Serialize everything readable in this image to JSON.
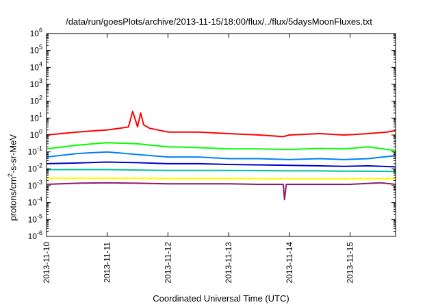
{
  "chart_data": {
    "type": "line",
    "title": "/data/run/goesPlots/archive/2013-11-15/18:00/flux/../flux/5daysMoonFluxes.txt",
    "xlabel": "Coordinated Universal Time (UTC)",
    "ylabel": {
      "prefix": "protons/cm",
      "sup": "2",
      "suffix": "-s-sr-MeV"
    },
    "y_scale": "log",
    "ylim": [
      1e-06,
      1000000.0
    ],
    "xlim": [
      "2013-11-10",
      "2013-11-15 18:00"
    ],
    "x_ticks": [
      "2013-11-10",
      "2013-11-11",
      "2013-11-12",
      "2013-11-13",
      "2013-11-14",
      "2013-11-15"
    ],
    "y_ticks": [
      {
        "base": "10",
        "exp": "6"
      },
      {
        "base": "10",
        "exp": "5"
      },
      {
        "base": "10",
        "exp": "4"
      },
      {
        "base": "10",
        "exp": "3"
      },
      {
        "base": "10",
        "exp": "2"
      },
      {
        "base": "10",
        "exp": "1"
      },
      {
        "base": "10",
        "exp": "0"
      },
      {
        "base": "10",
        "exp": "-1"
      },
      {
        "base": "10",
        "exp": "-2"
      },
      {
        "base": "10",
        "exp": "-3"
      },
      {
        "base": "10",
        "exp": "-4"
      },
      {
        "base": "10",
        "exp": "-5"
      },
      {
        "base": "10",
        "exp": "-6"
      }
    ],
    "grid": false,
    "legend": "none",
    "series": [
      {
        "color": "#ff0000",
        "x": [
          0,
          0.5,
          1.0,
          1.2,
          1.35,
          1.42,
          1.5,
          1.55,
          1.6,
          1.7,
          2.0,
          2.5,
          3.0,
          3.5,
          3.9,
          4.0,
          4.5,
          4.9,
          5.3,
          5.6,
          5.75
        ],
        "values": [
          1.0,
          1.5,
          2.0,
          2.5,
          3.0,
          25,
          3.0,
          20,
          4.0,
          2.5,
          1.5,
          1.5,
          1.2,
          1.0,
          0.8,
          1.0,
          1.2,
          1.0,
          1.2,
          1.5,
          1.8
        ]
      },
      {
        "color": "#00ff00",
        "x": [
          0,
          0.5,
          1.0,
          1.5,
          2.0,
          2.5,
          3.0,
          3.5,
          4.0,
          4.5,
          4.9,
          5.3,
          5.75
        ],
        "values": [
          0.15,
          0.25,
          0.35,
          0.3,
          0.2,
          0.18,
          0.15,
          0.15,
          0.14,
          0.16,
          0.15,
          0.2,
          0.12
        ]
      },
      {
        "color": "#0080ff",
        "x": [
          0,
          0.5,
          1.0,
          1.5,
          2.0,
          2.5,
          3.0,
          3.5,
          4.0,
          4.5,
          4.9,
          5.3,
          5.75
        ],
        "values": [
          0.05,
          0.08,
          0.1,
          0.07,
          0.05,
          0.05,
          0.04,
          0.04,
          0.035,
          0.04,
          0.035,
          0.04,
          0.06
        ]
      },
      {
        "color": "#0000cc",
        "x": [
          0,
          0.5,
          1.0,
          1.5,
          2.0,
          2.5,
          3.0,
          3.5,
          4.0,
          4.5,
          4.9,
          5.3,
          5.75
        ],
        "values": [
          0.02,
          0.022,
          0.025,
          0.023,
          0.02,
          0.02,
          0.018,
          0.017,
          0.016,
          0.015,
          0.014,
          0.015,
          0.013
        ]
      },
      {
        "color": "#00c0a0",
        "x": [
          0,
          0.5,
          1.0,
          1.5,
          2.0,
          2.5,
          3.0,
          3.5,
          4.0,
          4.5,
          4.9,
          5.3,
          5.75
        ],
        "values": [
          0.009,
          0.009,
          0.009,
          0.0085,
          0.008,
          0.008,
          0.008,
          0.0078,
          0.0075,
          0.0075,
          0.0073,
          0.0072,
          0.007
        ]
      },
      {
        "color": "#ffff00",
        "x": [
          0,
          1.0,
          2.0,
          3.0,
          4.0,
          5.0,
          5.75
        ],
        "values": [
          0.0028,
          0.0028,
          0.0027,
          0.0027,
          0.0026,
          0.0026,
          0.0026
        ]
      },
      {
        "color": "#8b1a6b",
        "x": [
          0,
          0.5,
          1.0,
          1.5,
          2.0,
          2.5,
          3.0,
          3.5,
          3.9,
          3.92,
          3.95,
          4.5,
          5.0,
          5.5,
          5.75
        ],
        "values": [
          0.0012,
          0.0014,
          0.0015,
          0.0014,
          0.0013,
          0.0013,
          0.0013,
          0.0012,
          0.0012,
          0.00015,
          0.0012,
          0.0012,
          0.0012,
          0.0015,
          0.0012
        ]
      }
    ]
  }
}
